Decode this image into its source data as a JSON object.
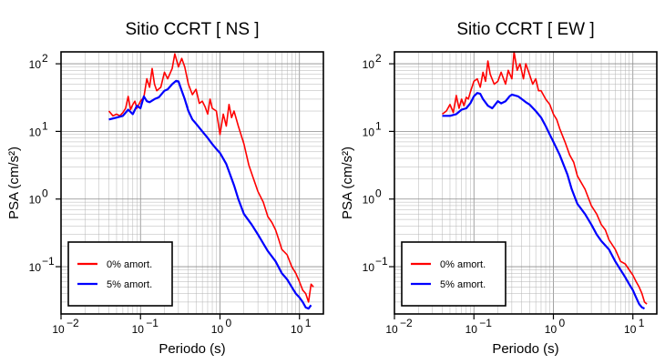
{
  "chart_data": [
    {
      "type": "line",
      "title": "Sitio CCRT [ NS ]",
      "xlabel": "Periodo (s)",
      "ylabel": "PSA (cm/s²)",
      "xscale": "log",
      "yscale": "log",
      "xlim": [
        0.01,
        20
      ],
      "ylim": [
        0.02,
        150
      ],
      "grid": true,
      "legend": "bottom-left",
      "x_ticks": [
        {
          "value": 0.01,
          "base": "10",
          "exp": "−2"
        },
        {
          "value": 0.1,
          "base": "10",
          "exp": "−1"
        },
        {
          "value": 1,
          "base": "10",
          "exp": "0"
        },
        {
          "value": 10,
          "base": "10",
          "exp": "1"
        }
      ],
      "y_ticks": [
        {
          "value": 0.1,
          "base": "10",
          "exp": "−1"
        },
        {
          "value": 1,
          "base": "10",
          "exp": "0"
        },
        {
          "value": 10,
          "base": "10",
          "exp": "1"
        },
        {
          "value": 100,
          "base": "10",
          "exp": "2"
        }
      ],
      "series": [
        {
          "name": "0% amort.",
          "color": "#ff0000",
          "x": [
            0.04,
            0.045,
            0.05,
            0.055,
            0.06,
            0.065,
            0.07,
            0.075,
            0.08,
            0.085,
            0.09,
            0.1,
            0.11,
            0.12,
            0.13,
            0.14,
            0.15,
            0.16,
            0.18,
            0.2,
            0.22,
            0.25,
            0.27,
            0.3,
            0.33,
            0.36,
            0.4,
            0.45,
            0.5,
            0.55,
            0.6,
            0.65,
            0.7,
            0.75,
            0.8,
            0.9,
            1.0,
            1.1,
            1.2,
            1.3,
            1.4,
            1.5,
            1.7,
            2.0,
            2.3,
            2.6,
            3.0,
            3.5,
            4.0,
            4.5,
            5.0,
            5.5,
            6.0,
            7.0,
            8.0,
            9.0,
            10.0,
            11.0,
            12.0,
            13.0,
            14.0,
            15.0
          ],
          "y": [
            20,
            17,
            18,
            17,
            19,
            22,
            33,
            21,
            25,
            28,
            22,
            28,
            32,
            60,
            45,
            85,
            50,
            40,
            45,
            75,
            60,
            85,
            140,
            90,
            120,
            90,
            50,
            35,
            42,
            26,
            28,
            23,
            18,
            30,
            22,
            20,
            9,
            18,
            12,
            25,
            16,
            20,
            12,
            6.5,
            3.2,
            2.1,
            1.3,
            0.9,
            0.55,
            0.45,
            0.35,
            0.25,
            0.18,
            0.15,
            0.1,
            0.08,
            0.06,
            0.045,
            0.04,
            0.03,
            0.055,
            0.05
          ]
        },
        {
          "name": "5% amort.",
          "color": "#0000ff",
          "x": [
            0.04,
            0.05,
            0.06,
            0.07,
            0.08,
            0.09,
            0.1,
            0.11,
            0.12,
            0.13,
            0.15,
            0.17,
            0.2,
            0.22,
            0.25,
            0.28,
            0.3,
            0.33,
            0.36,
            0.4,
            0.45,
            0.5,
            0.6,
            0.7,
            0.8,
            0.9,
            1.0,
            1.2,
            1.5,
            1.7,
            2.0,
            2.5,
            3.0,
            3.5,
            4.0,
            5.0,
            6.0,
            7.0,
            8.0,
            9.0,
            10.0,
            11.0,
            12.0,
            13.0,
            14.0
          ],
          "y": [
            15,
            16,
            17,
            21,
            18,
            24,
            22,
            33,
            28,
            27,
            30,
            32,
            40,
            42,
            50,
            56,
            55,
            40,
            30,
            20,
            15,
            13,
            10,
            8,
            6.5,
            5.5,
            4.8,
            3.3,
            1.6,
            1.0,
            0.6,
            0.42,
            0.3,
            0.22,
            0.17,
            0.12,
            0.08,
            0.065,
            0.05,
            0.04,
            0.035,
            0.03,
            0.025,
            0.024,
            0.027
          ]
        }
      ]
    },
    {
      "type": "line",
      "title": "Sitio CCRT [ EW ]",
      "xlabel": "Periodo (s)",
      "ylabel": "PSA (cm/s²)",
      "xscale": "log",
      "yscale": "log",
      "xlim": [
        0.01,
        20
      ],
      "ylim": [
        0.02,
        150
      ],
      "grid": true,
      "legend": "bottom-left",
      "x_ticks": [
        {
          "value": 0.01,
          "base": "10",
          "exp": "−2"
        },
        {
          "value": 0.1,
          "base": "10",
          "exp": "−1"
        },
        {
          "value": 1,
          "base": "10",
          "exp": "0"
        },
        {
          "value": 10,
          "base": "10",
          "exp": "1"
        }
      ],
      "y_ticks": [
        {
          "value": 0.1,
          "base": "10",
          "exp": "−1"
        },
        {
          "value": 1,
          "base": "10",
          "exp": "0"
        },
        {
          "value": 10,
          "base": "10",
          "exp": "1"
        },
        {
          "value": 100,
          "base": "10",
          "exp": "2"
        }
      ],
      "series": [
        {
          "name": "0% amort.",
          "color": "#ff0000",
          "x": [
            0.04,
            0.045,
            0.05,
            0.055,
            0.06,
            0.065,
            0.07,
            0.075,
            0.08,
            0.085,
            0.09,
            0.1,
            0.11,
            0.12,
            0.13,
            0.14,
            0.15,
            0.16,
            0.18,
            0.2,
            0.22,
            0.25,
            0.27,
            0.3,
            0.32,
            0.35,
            0.38,
            0.42,
            0.45,
            0.5,
            0.55,
            0.6,
            0.65,
            0.7,
            0.8,
            0.9,
            1.0,
            1.1,
            1.2,
            1.4,
            1.6,
            1.8,
            2.0,
            2.5,
            3.0,
            3.5,
            4.0,
            4.5,
            5.0,
            6.0,
            7.0,
            8.0,
            9.0,
            10.0,
            11.0,
            12.0,
            13.0,
            14.0,
            15.0
          ],
          "y": [
            18,
            20,
            25,
            19,
            34,
            22,
            30,
            24,
            32,
            30,
            38,
            55,
            60,
            45,
            75,
            55,
            110,
            70,
            50,
            55,
            75,
            50,
            80,
            60,
            150,
            80,
            100,
            60,
            100,
            70,
            50,
            60,
            40,
            40,
            30,
            25,
            18,
            15,
            11,
            7,
            4.5,
            3.5,
            2.2,
            1.4,
            0.8,
            0.6,
            0.42,
            0.35,
            0.25,
            0.18,
            0.12,
            0.11,
            0.09,
            0.075,
            0.06,
            0.05,
            0.04,
            0.03,
            0.028
          ]
        },
        {
          "name": "5% amort.",
          "color": "#0000ff",
          "x": [
            0.04,
            0.05,
            0.06,
            0.07,
            0.08,
            0.09,
            0.1,
            0.11,
            0.12,
            0.13,
            0.15,
            0.17,
            0.2,
            0.22,
            0.25,
            0.28,
            0.3,
            0.33,
            0.36,
            0.4,
            0.45,
            0.5,
            0.6,
            0.7,
            0.8,
            0.9,
            1.0,
            1.2,
            1.5,
            1.7,
            2.0,
            2.5,
            3.0,
            3.5,
            4.0,
            5.0,
            6.0,
            7.0,
            8.0,
            9.0,
            10.0,
            11.0,
            12.0,
            13.0,
            14.0
          ],
          "y": [
            17,
            17,
            18,
            21,
            22,
            26,
            33,
            37,
            36,
            30,
            24,
            22,
            28,
            26,
            28,
            33,
            35,
            34,
            33,
            30,
            27,
            25,
            20,
            16,
            12,
            9,
            7,
            4.5,
            2.3,
            1.4,
            0.85,
            0.6,
            0.42,
            0.3,
            0.24,
            0.18,
            0.12,
            0.09,
            0.07,
            0.055,
            0.045,
            0.035,
            0.028,
            0.025,
            0.024
          ]
        }
      ]
    }
  ]
}
